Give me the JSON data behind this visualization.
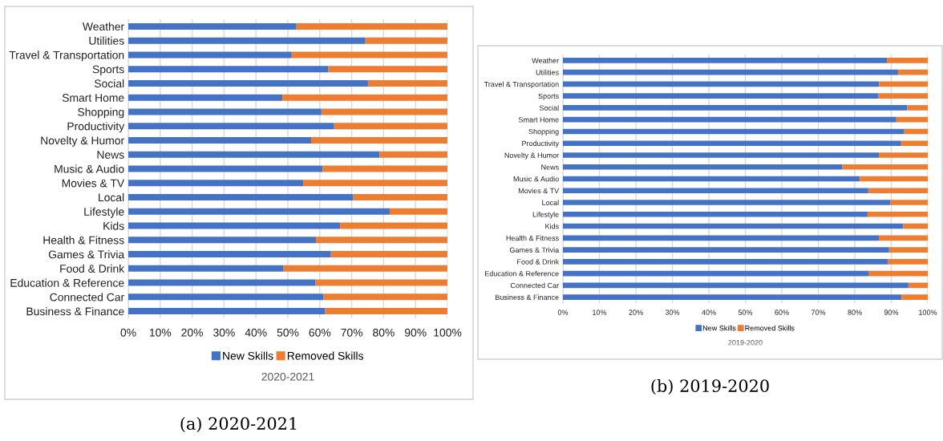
{
  "chart_data": [
    {
      "type": "bar",
      "orientation": "horizontal",
      "stacked": true,
      "title": "2020-2021",
      "annotations": [
        "(a) 2020-2021"
      ],
      "categories": [
        "Weather",
        "Utilities",
        "Travel & Transportation",
        "Sports",
        "Social",
        "Smart Home",
        "Shopping",
        "Productivity",
        "Novelty & Humor",
        "News",
        "Music & Audio",
        "Movies & TV",
        "Local",
        "Lifestyle",
        "Kids",
        "Health & Fitness",
        "Games & Trivia",
        "Food & Drink",
        "Education & Reference",
        "Connected Car",
        "Business & Finance"
      ],
      "series": [
        {
          "name": "New Skills",
          "color": "#4472c4",
          "values": [
            52.7,
            74.3,
            51.2,
            62.7,
            75.1,
            48.3,
            60.5,
            64.5,
            57.3,
            78.7,
            60.9,
            54.8,
            70.5,
            81.9,
            66.4,
            58.8,
            63.5,
            48.5,
            58.7,
            61.1,
            61.6
          ]
        },
        {
          "name": "Removed Skills",
          "color": "#ed7d31",
          "values": [
            47.3,
            25.7,
            48.8,
            37.3,
            24.9,
            51.7,
            39.5,
            35.5,
            42.7,
            21.3,
            39.1,
            45.2,
            29.5,
            18.1,
            33.6,
            41.2,
            36.5,
            51.5,
            41.3,
            38.9,
            38.4
          ]
        }
      ],
      "xlim": [
        0,
        100
      ],
      "xticks": [
        {
          "value": 0,
          "label": "0%"
        },
        {
          "value": 10,
          "label": "10%"
        },
        {
          "value": 20,
          "label": "20%"
        },
        {
          "value": 30,
          "label": "30%"
        },
        {
          "value": 40,
          "label": "40%"
        },
        {
          "value": 50,
          "label": "50%"
        },
        {
          "value": 60,
          "label": "60%"
        },
        {
          "value": 70,
          "label": "70%"
        },
        {
          "value": 80,
          "label": "80%"
        },
        {
          "value": 90,
          "label": "90%"
        },
        {
          "value": 100,
          "label": "100%"
        }
      ],
      "grid": "x",
      "legend": "bottom"
    },
    {
      "type": "bar",
      "orientation": "horizontal",
      "stacked": true,
      "title": "2019-2020",
      "annotations": [
        "(b) 2019-2020"
      ],
      "categories": [
        "Weather",
        "Utilities",
        "Travel & Transportation",
        "Sports",
        "Social",
        "Smart Home",
        "Shopping",
        "Productivity",
        "Novelty & Humor",
        "News",
        "Music & Audio",
        "Movies & TV",
        "Local",
        "Lifestyle",
        "Kids",
        "Health & Fitness",
        "Games & Trivia",
        "Food & Drink",
        "Education & Reference",
        "Connected Car",
        "Business & Finance"
      ],
      "series": [
        {
          "name": "New Skills",
          "color": "#4472c4",
          "values": [
            88.8,
            91.9,
            86.7,
            86.5,
            94.4,
            91.4,
            93.4,
            92.7,
            86.6,
            76.6,
            81.4,
            83.7,
            89.8,
            83.5,
            93.3,
            86.6,
            89.4,
            89.0,
            83.9,
            94.7,
            92.8
          ]
        },
        {
          "name": "Removed Skills",
          "color": "#ed7d31",
          "values": [
            11.2,
            8.1,
            13.3,
            13.5,
            5.6,
            8.6,
            6.6,
            7.3,
            13.4,
            23.4,
            18.6,
            16.3,
            10.2,
            16.5,
            6.7,
            13.4,
            10.6,
            11.0,
            16.1,
            5.3,
            7.2
          ]
        }
      ],
      "xlim": [
        0,
        100
      ],
      "xticks": [
        {
          "value": 0,
          "label": "0%"
        },
        {
          "value": 10,
          "label": "10%"
        },
        {
          "value": 20,
          "label": "20%"
        },
        {
          "value": 30,
          "label": "30%"
        },
        {
          "value": 40,
          "label": "40%"
        },
        {
          "value": 50,
          "label": "50%"
        },
        {
          "value": 60,
          "label": "60%"
        },
        {
          "value": 70,
          "label": "70%"
        },
        {
          "value": 80,
          "label": "80%"
        },
        {
          "value": 90,
          "label": "90%"
        },
        {
          "value": 100,
          "label": "100%"
        }
      ],
      "grid": "x",
      "legend": "bottom"
    }
  ]
}
